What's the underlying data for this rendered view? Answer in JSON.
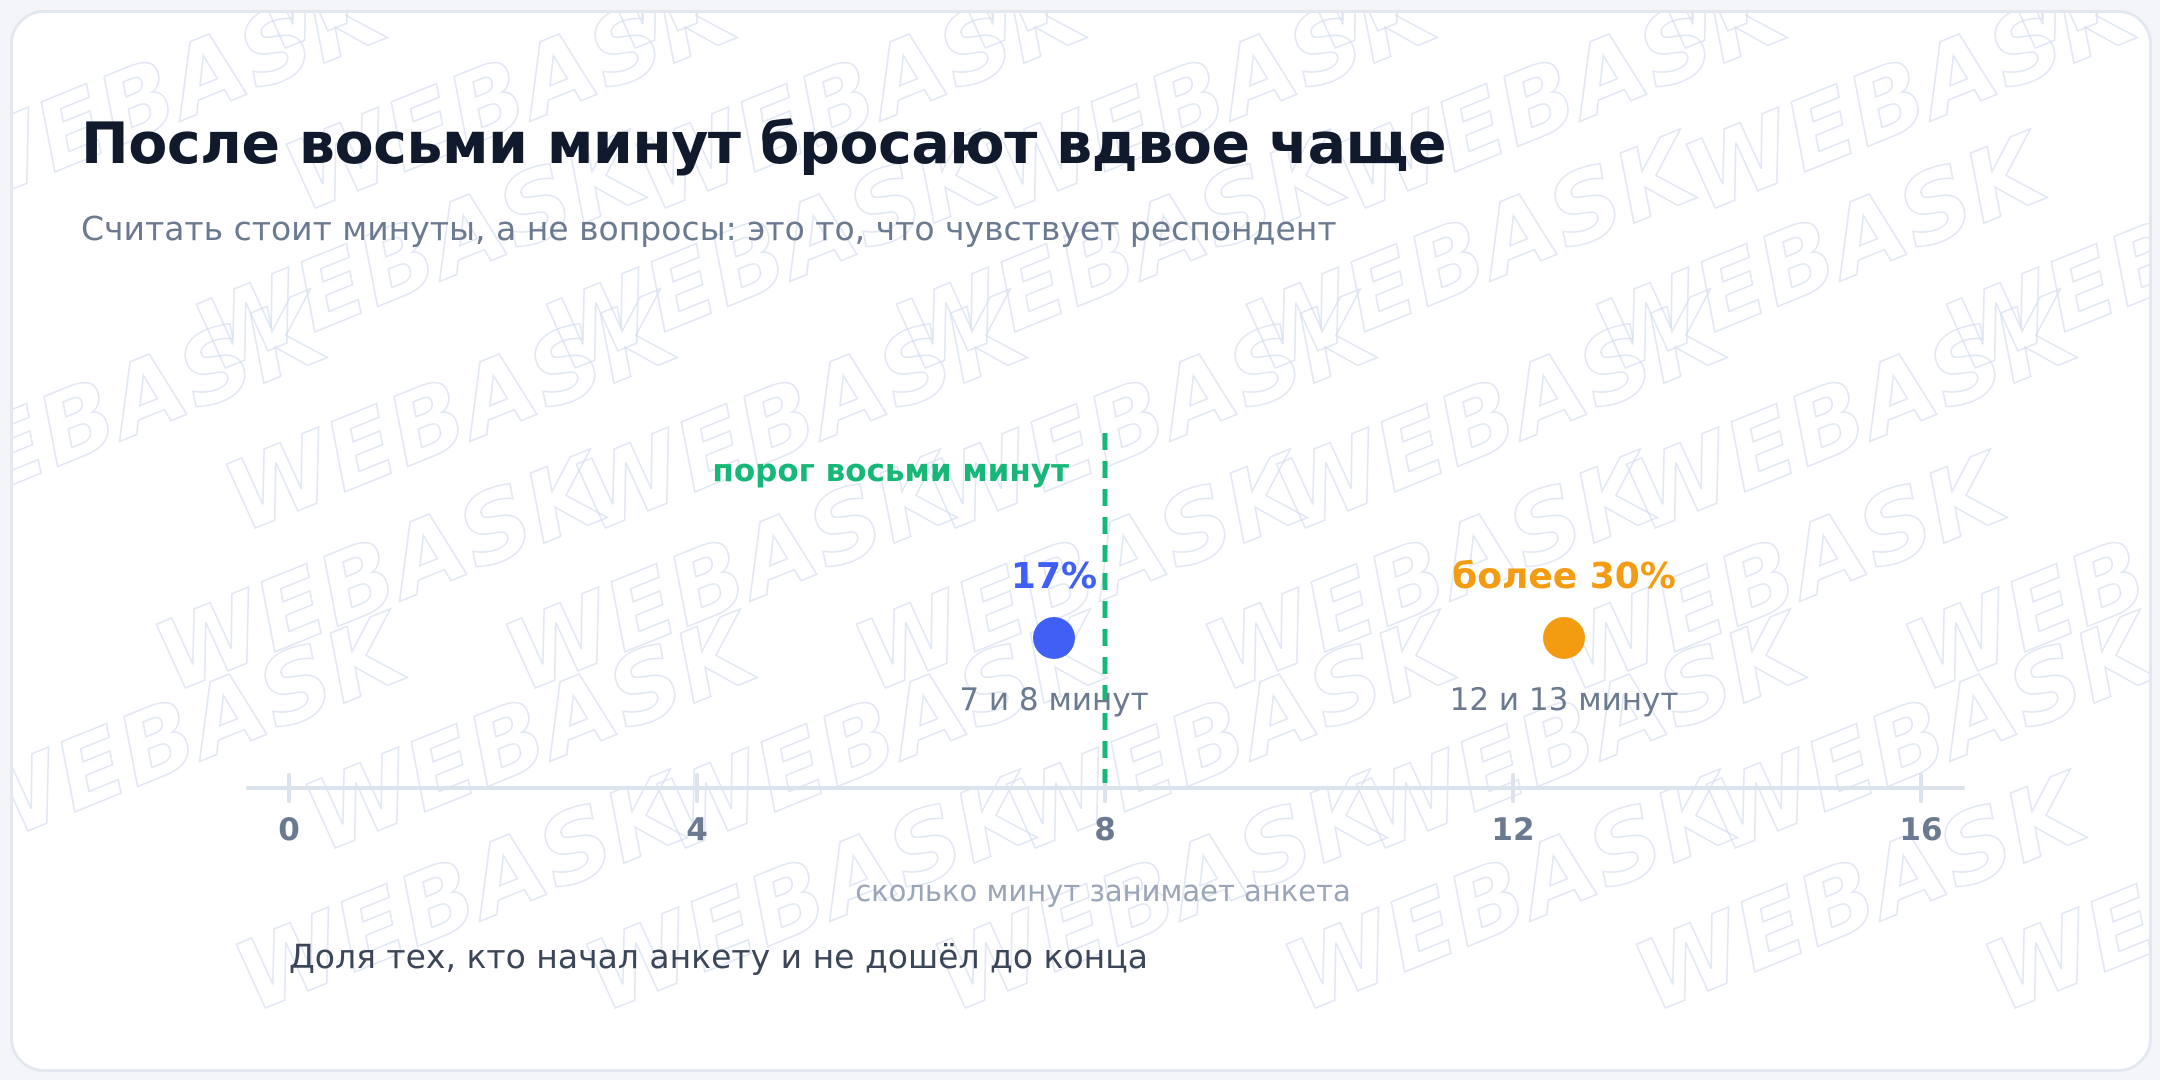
{
  "title": "После восьми минут бросают вдвое чаще",
  "subtitle": "Считать стоит минуты, а не вопросы: это то, что чувствует респондент",
  "note": "Доля тех, кто начал анкету и не дошёл до конца",
  "watermark_text": "WEBASK",
  "chart_data": {
    "type": "scatter",
    "xlabel": "сколько минут занимает анкета",
    "xlim": [
      0,
      16
    ],
    "xticks": [
      0,
      4,
      8,
      12,
      16
    ],
    "grid": false,
    "threshold": {
      "x": 8,
      "label": "порог восьми минут",
      "color": "#17b877"
    },
    "points": [
      {
        "x": 7.5,
        "value_label": "17%",
        "category_label": "7 и 8 минут",
        "color": "#3f5ff5"
      },
      {
        "x": 12.5,
        "value_label": "более 30%",
        "category_label": "12 и 13 минут",
        "color": "#f39c12"
      }
    ]
  }
}
